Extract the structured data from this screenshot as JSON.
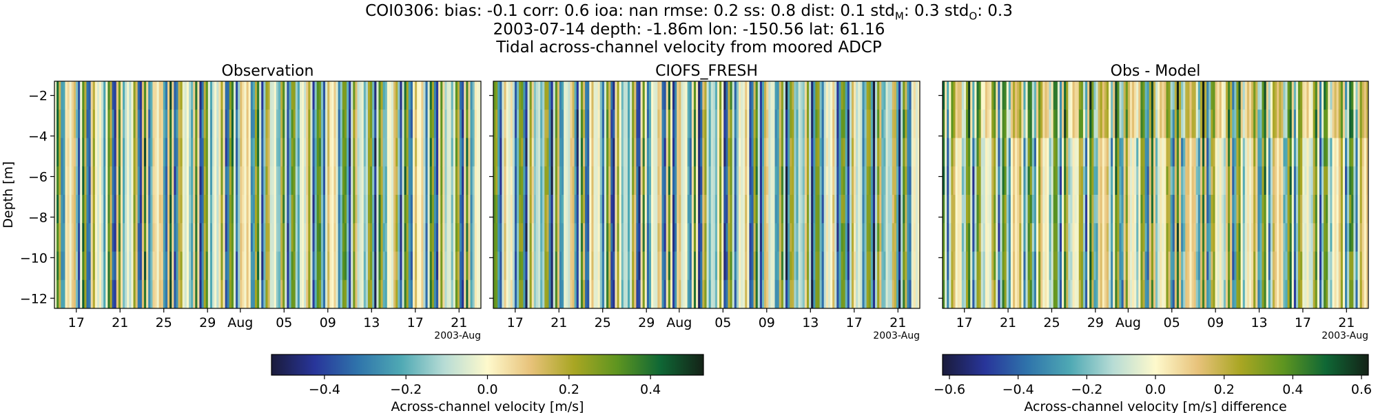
{
  "title": {
    "stats_prefix": "COI0306: bias: -0.1  corr: 0.6  ioa: nan  rmse: 0.2  ss: 0.8  dist: 0.1  std",
    "std_m_sub": "M",
    "std_m_value": ": 0.3  std",
    "std_o_sub": "O",
    "std_o_value": ": 0.3",
    "line2": "2003-07-14 depth: -1.86m lon: -150.56 lat: 61.16",
    "line3": "Tidal across-channel velocity from moored ADCP"
  },
  "chart_data": {
    "type": "heatmap",
    "ylabel": "Depth [m]",
    "ylim": [
      -12.5,
      -1.3
    ],
    "y_ticks": [
      -2,
      -4,
      -6,
      -8,
      -10,
      -12
    ],
    "x_ticks": [
      "17",
      "21",
      "25",
      "29",
      "Aug",
      "05",
      "09",
      "13",
      "17",
      "21"
    ],
    "x_offset_label": "2003-Aug",
    "x_start": "2003-07-15",
    "x_end": "2003-08-23",
    "panels": [
      {
        "title": "Observation",
        "colormap": "delta",
        "vlim": [
          -0.53,
          0.53
        ]
      },
      {
        "title": "CIOFS_FRESH",
        "colormap": "delta",
        "vlim": [
          -0.53,
          0.53
        ]
      },
      {
        "title": "Obs - Model",
        "colormap": "delta",
        "vlim": [
          -0.62,
          0.62
        ]
      }
    ],
    "colorbars": [
      {
        "label": "Across-channel velocity [m/s]",
        "ticks": [
          "−0.4",
          "−0.2",
          "0.0",
          "0.2",
          "0.4"
        ],
        "tick_values": [
          -0.4,
          -0.2,
          0.0,
          0.2,
          0.4
        ],
        "vlim": [
          -0.53,
          0.53
        ]
      },
      {
        "label": "Across-channel velocity [m/s] difference",
        "ticks": [
          "−0.6",
          "−0.4",
          "−0.2",
          "0.0",
          "0.2",
          "0.4",
          "0.6"
        ],
        "tick_values": [
          -0.6,
          -0.4,
          -0.2,
          0.0,
          0.2,
          0.4,
          0.6
        ],
        "vlim": [
          -0.62,
          0.62
        ]
      }
    ],
    "colormap_stops": [
      "#1a1b3b",
      "#28359a",
      "#2f74ab",
      "#4fa9b4",
      "#b7dcd5",
      "#fef9cc",
      "#e7c27a",
      "#a9a623",
      "#5e9520",
      "#0f6735",
      "#142217"
    ]
  }
}
